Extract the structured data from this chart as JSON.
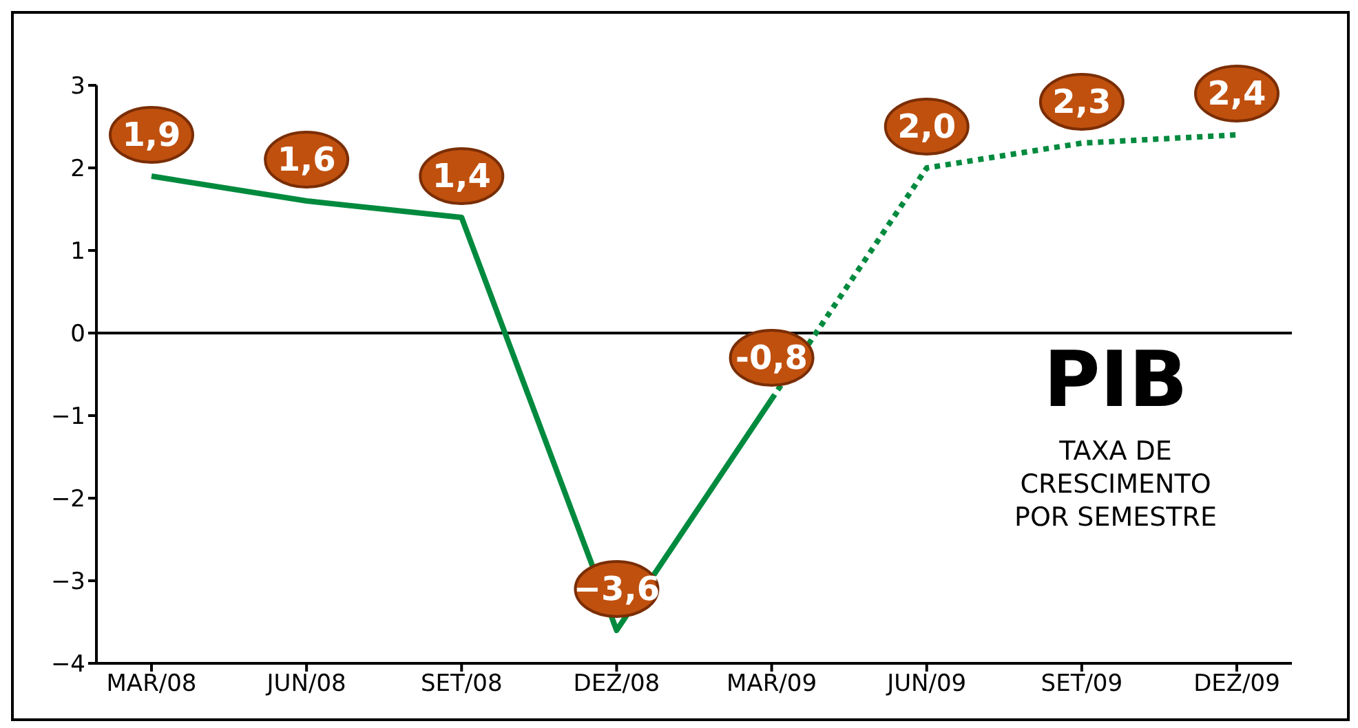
{
  "chart_data": {
    "type": "line",
    "title": "PIB",
    "subtitle": "TAXA DE\nCRESCIMENTO\nPOR SEMESTRE",
    "categories": [
      "MAR/08",
      "JUN/08",
      "SET/08",
      "DEZ/08",
      "MAR/09",
      "JUN/09",
      "SET/09",
      "DEZ/09"
    ],
    "series": [
      {
        "color": "#008a3e",
        "line_style": "solid",
        "values": [
          1.9,
          1.6,
          1.4,
          -3.6,
          -0.8,
          null,
          null,
          null
        ],
        "value_labels": [
          "1,9",
          "1,6",
          "1,4",
          "−3,6",
          "-0,8",
          null,
          null,
          null
        ]
      },
      {
        "color": "#008a3e",
        "line_style": "dotted",
        "values": [
          null,
          null,
          null,
          null,
          -0.8,
          2.0,
          2.3,
          2.4
        ],
        "value_labels": [
          null,
          null,
          null,
          null,
          null,
          "2,0",
          "2,3",
          "2,4"
        ]
      }
    ],
    "ylim": [
      -4,
      3
    ],
    "yticks": [
      {
        "value": -4,
        "label": "−4"
      },
      {
        "value": -3,
        "label": "−3"
      },
      {
        "value": -2,
        "label": "−2"
      },
      {
        "value": -1,
        "label": "−1"
      },
      0,
      1,
      2,
      3
    ],
    "ref_lines": [
      {
        "axis": "y",
        "value": 0,
        "color": "#000000"
      }
    ],
    "grid": false,
    "legend": false,
    "marker": "none"
  }
}
